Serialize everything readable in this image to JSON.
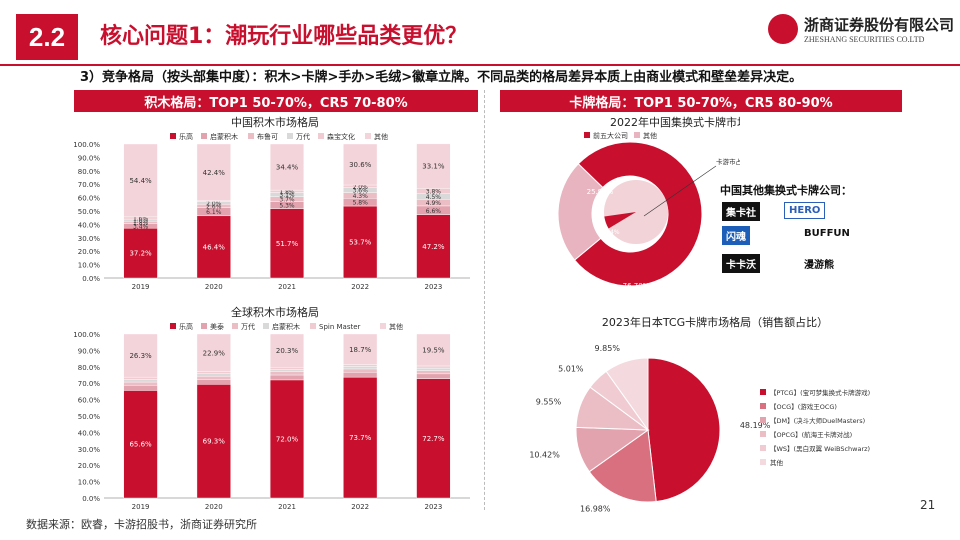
{
  "header": {
    "section": "2.2",
    "title": "核心问题1：潮玩行业哪些品类更优？",
    "company": "浙商证券股份有限公司",
    "company_en": "ZHESHANG SECURITIES CO.LTD"
  },
  "subtitle": "3）竞争格局（按头部集中度）：积木>卡牌>手办>毛绒>徽章立牌。不同品类的格局差异本质上由商业模式和壁垒差异决定。",
  "left_band": "积木格局：TOP1 50-70%，CR5 70-80%",
  "right_band": "卡牌格局：TOP1 50-70%，CR5 80-90%",
  "footer": "数据来源：欧睿，卡游招股书，浙商证券研究所",
  "page_number": "21",
  "other_companies_title": "中国其他集换式卡牌公司：",
  "brands": [
    "集卡社",
    "HERO",
    "闪魂",
    "BUFFUN",
    "卡卡沃",
    "漫游熊"
  ],
  "colors": {
    "red": "#c8102e",
    "pink": "#e8b4bf",
    "light": "#f1d3d8",
    "mid": "#d9707f"
  },
  "chart_data": [
    {
      "type": "bar",
      "title": "中国积木市场格局",
      "categories": [
        "2019",
        "2020",
        "2021",
        "2022",
        "2023"
      ],
      "series": [
        {
          "name": "乐高",
          "values": [
            37.2,
            46.4,
            51.7,
            53.7,
            47.2
          ]
        },
        {
          "name": "启蒙积木",
          "values": [
            3.4,
            6.1,
            5.3,
            5.8,
            6.6
          ]
        },
        {
          "name": "布鲁可",
          "values": [
            1.8,
            2.6,
            3.7,
            4.3,
            4.9
          ]
        },
        {
          "name": "万代",
          "values": [
            1.6,
            2.0,
            3.1,
            3.6,
            4.5
          ]
        },
        {
          "name": "森宝文化",
          "values": [
            1.6,
            0.5,
            1.8,
            2.0,
            3.8
          ]
        },
        {
          "name": "其他",
          "values": [
            54.4,
            42.4,
            34.4,
            30.6,
            33.1
          ]
        }
      ],
      "value_labels": [
        [
          "37.2%",
          "3.4%",
          "1.8%",
          "1.6%",
          "1.6%",
          "54.4%"
        ],
        [
          "46.4%",
          "6.1%",
          "2.6%",
          "2.0%",
          "",
          "42.4%"
        ],
        [
          "51.7%",
          "5.3%",
          "3.7%",
          "3.1%",
          "1.8%",
          "34.4%"
        ],
        [
          "53.7%",
          "5.8%",
          "4.3%",
          "3.6%",
          "2.0%",
          "30.6%"
        ],
        [
          "47.2%",
          "6.6%",
          "4.9%",
          "4.5%",
          "3.8%",
          "33.1%"
        ]
      ],
      "yticks": [
        "0.0%",
        "10.0%",
        "20.0%",
        "30.0%",
        "40.0%",
        "50.0%",
        "60.0%",
        "70.0%",
        "80.0%",
        "90.0%",
        "100.0%"
      ],
      "ylim": [
        0,
        100
      ]
    },
    {
      "type": "bar",
      "title": "全球积木市场格局",
      "categories": [
        "2019",
        "2020",
        "2021",
        "2022",
        "2023"
      ],
      "series": [
        {
          "name": "乐高",
          "values": [
            65.6,
            69.3,
            72.0,
            73.7,
            72.7
          ]
        },
        {
          "name": "美泰",
          "values": [
            3.1,
            3.0,
            3.0,
            3.0,
            3.0
          ]
        },
        {
          "name": "万代",
          "values": [
            2.0,
            2.0,
            2.0,
            2.0,
            2.0
          ]
        },
        {
          "name": "启蒙积木",
          "values": [
            1.5,
            1.5,
            1.5,
            1.5,
            1.5
          ]
        },
        {
          "name": "Spin Master",
          "values": [
            1.5,
            1.3,
            1.2,
            1.1,
            1.3
          ]
        },
        {
          "name": "其他",
          "values": [
            26.3,
            22.9,
            20.3,
            18.7,
            19.5
          ]
        }
      ],
      "value_labels": [
        [
          "65.6%",
          "",
          "",
          "",
          "",
          "26.3%"
        ],
        [
          "69.3%",
          "",
          "",
          "",
          "",
          "22.9%"
        ],
        [
          "72.0%",
          "",
          "",
          "",
          "",
          "20.3%"
        ],
        [
          "73.7%",
          "",
          "",
          "",
          "",
          "18.7%"
        ],
        [
          "72.7%",
          "",
          "",
          "",
          "",
          "19.5%"
        ]
      ],
      "yticks": [
        "0.0%",
        "10.0%",
        "20.0%",
        "30.0%",
        "40.0%",
        "50.0%",
        "60.0%",
        "70.0%",
        "80.0%",
        "90.0%",
        "100.0%"
      ],
      "ylim": [
        0,
        100
      ]
    },
    {
      "type": "pie",
      "title": "2022年中国集换式卡牌市场格局",
      "labels": [
        "前五大公司",
        "其他"
      ],
      "values": [
        76.7,
        23.3
      ],
      "value_labels": [
        "76.70%",
        "23.30%"
      ],
      "inner_labels": [
        "5.4%",
        "25.90%"
      ],
      "annotation": "卡游市占率达71%"
    },
    {
      "type": "pie",
      "title": "2023年日本TCG卡牌市场格局（销售额占比）",
      "labels": [
        "【PTCG】(宝可梦集换式卡牌游戏)",
        "【OCG】(游戏王OCG)",
        "【DM】(决斗大师DuelMasters)",
        "【OPCG】(航海王卡牌对战)",
        "【WS】(黑白双翼 WeiBSchwarz)",
        "其他"
      ],
      "values": [
        48.19,
        16.98,
        10.42,
        9.55,
        5.01,
        9.85
      ],
      "value_labels": [
        "48.19%",
        "16.98%",
        "10.42%",
        "9.55%",
        "5.01%",
        "9.85%"
      ]
    }
  ]
}
